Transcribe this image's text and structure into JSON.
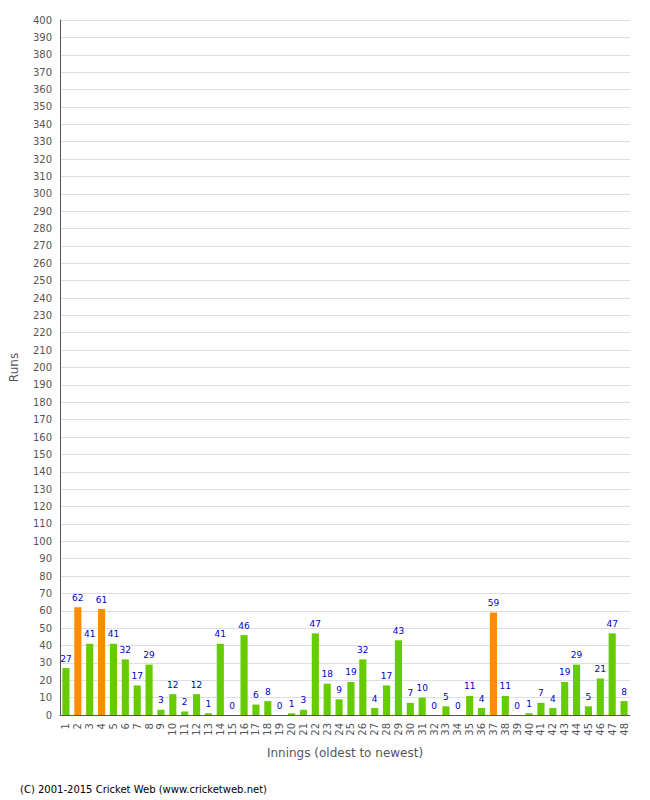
{
  "chart_data": {
    "type": "bar",
    "xlabel": "Innings (oldest to newest)",
    "ylabel": "Runs",
    "categories": [
      "1",
      "2",
      "3",
      "4",
      "5",
      "6",
      "7",
      "8",
      "9",
      "10",
      "11",
      "12",
      "13",
      "14",
      "15",
      "16",
      "17",
      "18",
      "19",
      "20",
      "21",
      "22",
      "23",
      "24",
      "25",
      "26",
      "27",
      "28",
      "29",
      "30",
      "31",
      "32",
      "33",
      "34",
      "35",
      "36",
      "37",
      "38",
      "39",
      "40",
      "41",
      "42",
      "43",
      "44",
      "45",
      "46",
      "47",
      "48"
    ],
    "values": [
      27,
      62,
      41,
      61,
      41,
      32,
      17,
      29,
      3,
      12,
      2,
      12,
      1,
      41,
      0,
      46,
      6,
      8,
      0,
      1,
      3,
      47,
      18,
      9,
      19,
      32,
      4,
      17,
      43,
      7,
      10,
      0,
      5,
      0,
      11,
      4,
      59,
      11,
      0,
      1,
      7,
      4,
      19,
      29,
      5,
      21,
      47,
      8
    ],
    "colors": [
      "#66cc00",
      "#ff8c00",
      "#66cc00",
      "#ff8c00",
      "#66cc00",
      "#66cc00",
      "#66cc00",
      "#66cc00",
      "#66cc00",
      "#66cc00",
      "#66cc00",
      "#66cc00",
      "#66cc00",
      "#66cc00",
      "#66cc00",
      "#66cc00",
      "#66cc00",
      "#66cc00",
      "#66cc00",
      "#66cc00",
      "#66cc00",
      "#66cc00",
      "#66cc00",
      "#66cc00",
      "#66cc00",
      "#66cc00",
      "#66cc00",
      "#66cc00",
      "#66cc00",
      "#66cc00",
      "#66cc00",
      "#66cc00",
      "#66cc00",
      "#66cc00",
      "#66cc00",
      "#66cc00",
      "#ff8c00",
      "#66cc00",
      "#66cc00",
      "#66cc00",
      "#66cc00",
      "#66cc00",
      "#66cc00",
      "#66cc00",
      "#66cc00",
      "#66cc00",
      "#66cc00",
      "#66cc00"
    ],
    "ylim": [
      0,
      400
    ],
    "yticks": [
      0,
      10,
      20,
      30,
      40,
      50,
      60,
      70,
      80,
      90,
      100,
      110,
      120,
      130,
      140,
      150,
      160,
      170,
      180,
      190,
      200,
      210,
      220,
      230,
      240,
      250,
      260,
      270,
      280,
      290,
      300,
      310,
      320,
      330,
      340,
      350,
      360,
      370,
      380,
      390,
      400
    ],
    "grid": true,
    "data_labels": true,
    "annotations": [
      "(C) 2001-2015 Cricket Web (www.cricketweb.net)"
    ]
  }
}
